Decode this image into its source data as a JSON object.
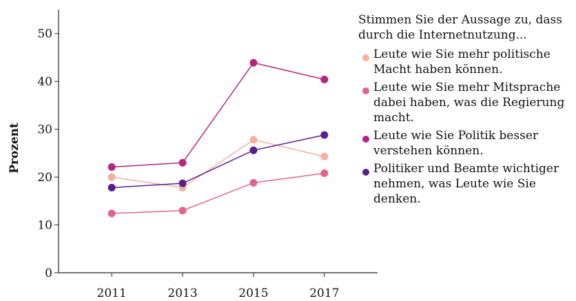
{
  "chart_data": {
    "type": "line",
    "legend_title": "Stimmen Sie der Aussage zu, dass durch die Internetnutzung...",
    "y_label": "Prozent",
    "x": [
      2011,
      2013,
      2015,
      2017
    ],
    "xlim": [
      2009.5,
      2018.5
    ],
    "xticks": [
      2011,
      2013,
      2015,
      2017
    ],
    "ylim": [
      0,
      55
    ],
    "yticks": [
      0,
      10,
      20,
      30,
      40,
      50
    ],
    "legend": "right",
    "series": [
      {
        "name": "Leute wie Sie mehr politische Macht haben können.",
        "color": "#f4b09c",
        "values": [
          20,
          17.8,
          27.8,
          24.3
        ]
      },
      {
        "name": "Leute wie Sie mehr Mitsprache dabei haben, was die Regierung macht.",
        "color": "#e2648c",
        "values": [
          12.4,
          13,
          18.8,
          20.8
        ]
      },
      {
        "name": "Leute wie Sie Politik besser verstehen können.",
        "color": "#b5257e",
        "values": [
          22.1,
          23,
          43.9,
          40.4
        ]
      },
      {
        "name": "Politiker und Beamte wichtiger nehmen, was Leute wie Sie denken.",
        "color": "#5b1e8e",
        "values": [
          17.8,
          18.7,
          25.6,
          28.8
        ]
      }
    ]
  }
}
